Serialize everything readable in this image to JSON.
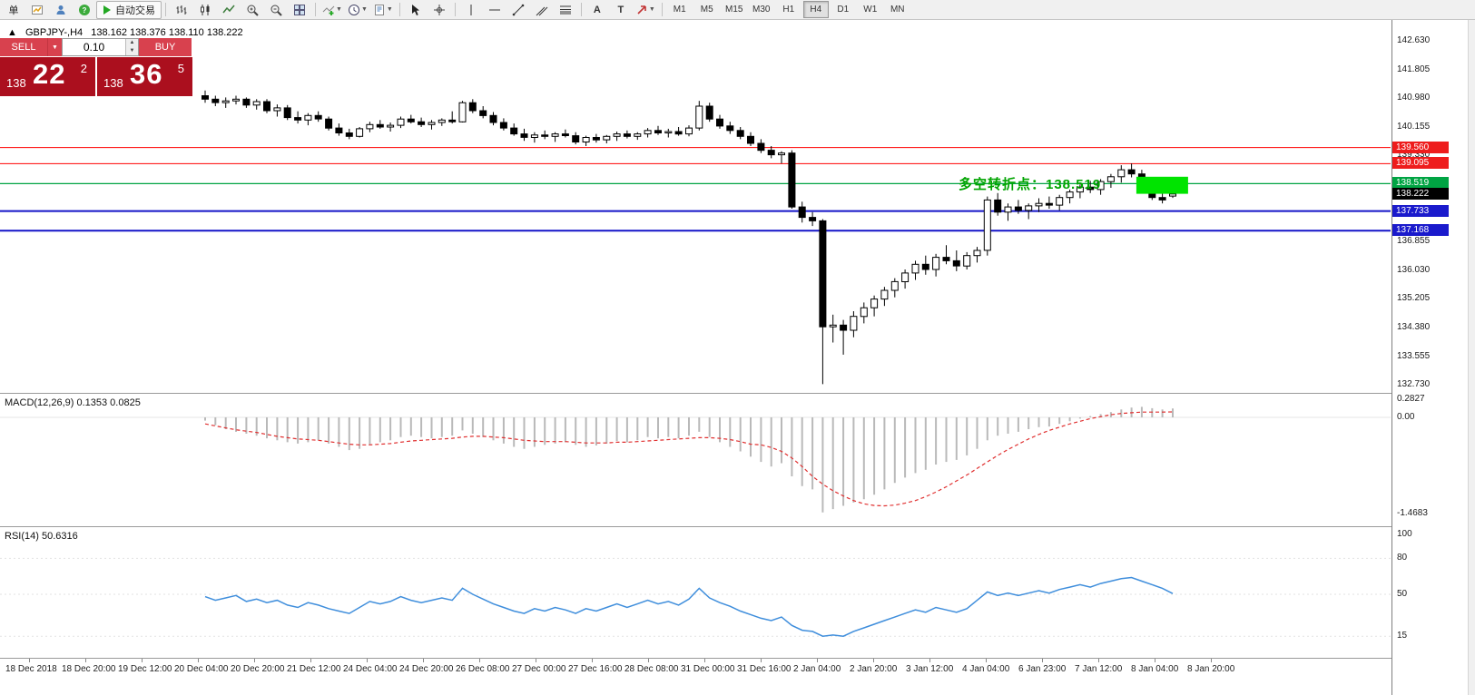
{
  "toolbar": {
    "new_order_label": "单",
    "autotrade_label": "自动交易",
    "text_tool": "A",
    "label_tool": "T",
    "timeframes": [
      "M1",
      "M5",
      "M15",
      "M30",
      "H1",
      "H4",
      "D1",
      "W1",
      "MN"
    ],
    "active_timeframe": "H4",
    "icons": [
      "new-order-icon",
      "new-chart-icon",
      "profiles-icon",
      "help-icon",
      "autotrade-play-icon",
      "bar-chart-icon",
      "candlestick-icon",
      "line-chart-icon",
      "zoom-in-icon",
      "zoom-out-icon",
      "tile-windows-icon",
      "add-indicator-icon",
      "periods-clock-icon",
      "template-icon",
      "cursor-icon",
      "crosshair-icon",
      "vertical-line-icon",
      "horizontal-line-icon",
      "trendline-icon",
      "channel-icon",
      "fibonacci-icon",
      "text-icon",
      "text-label-icon",
      "arrows-icon"
    ]
  },
  "symbol_header": {
    "collapse_arrow": "▲",
    "title": "GBPJPY-,H4",
    "ohlc": "138.162 138.376 138.110 138.222"
  },
  "trade_panel": {
    "sell_label": "SELL",
    "buy_label": "BUY",
    "lot_value": "0.10",
    "sell_display": {
      "prefix": "138",
      "big": "22",
      "sup": "2"
    },
    "buy_display": {
      "prefix": "138",
      "big": "36",
      "sup": "5"
    }
  },
  "main_chart": {
    "hlines": [
      {
        "price": 139.56,
        "color": "#ff0000",
        "width": 1
      },
      {
        "price": 139.095,
        "color": "#ff0000",
        "width": 1
      },
      {
        "price": 138.519,
        "color": "#00a443",
        "width": 1.3
      },
      {
        "price": 137.733,
        "color": "#1414c8",
        "width": 2
      },
      {
        "price": 137.168,
        "color": "#1414c8",
        "width": 2
      }
    ],
    "green_box": {
      "from_candle": 92,
      "to_candle": 95,
      "price_top": 138.72,
      "price_bottom": 138.23,
      "color": "#00e400"
    },
    "annotation": {
      "text": "多空转折点：138.519",
      "color": "#00a400"
    },
    "axis_labels": [
      {
        "text": "142.630",
        "price": 142.63
      },
      {
        "text": "141.805",
        "price": 141.805
      },
      {
        "text": "140.980",
        "price": 140.98
      },
      {
        "text": "140.155",
        "price": 140.155
      },
      {
        "text": "139.330",
        "price": 139.33
      },
      {
        "text": "136.855",
        "price": 136.855
      },
      {
        "text": "136.030",
        "price": 136.03
      },
      {
        "text": "135.205",
        "price": 135.205
      },
      {
        "text": "134.380",
        "price": 134.38
      },
      {
        "text": "133.555",
        "price": 133.555
      },
      {
        "text": "132.730",
        "price": 132.73
      }
    ],
    "price_badges": [
      {
        "text": "139.560",
        "price": 139.56,
        "bg": "#ee1c1c"
      },
      {
        "text": "139.095",
        "price": 139.095,
        "bg": "#ee1c1c"
      },
      {
        "text": "138.519",
        "price": 138.519,
        "bg": "#00a443"
      },
      {
        "text": "138.222",
        "price": 138.222,
        "bg": "#000000"
      },
      {
        "text": "137.733",
        "price": 137.733,
        "bg": "#1a1acc"
      },
      {
        "text": "137.168",
        "price": 137.168,
        "bg": "#1a1acc"
      }
    ]
  },
  "macd": {
    "label": "MACD(12,26,9) 0.1353 0.0825",
    "axis": [
      {
        "text": "0.2827",
        "value": 0.2827
      },
      {
        "text": "0.00",
        "value": 0
      },
      {
        "text": "-1.4683",
        "value": -1.4683
      }
    ]
  },
  "rsi": {
    "label": "RSI(14) 50.6316",
    "axis": [
      {
        "text": "100",
        "value": 100
      },
      {
        "text": "80",
        "value": 80
      },
      {
        "text": "50",
        "value": 50
      },
      {
        "text": "15",
        "value": 15
      }
    ],
    "levels": [
      80,
      50,
      15
    ]
  },
  "time_axis": [
    "18 Dec 2018",
    "18 Dec 20:00",
    "19 Dec 12:00",
    "20 Dec 04:00",
    "20 Dec 20:00",
    "21 Dec 12:00",
    "24 Dec 04:00",
    "24 Dec 20:00",
    "26 Dec 08:00",
    "27 Dec 00:00",
    "27 Dec 16:00",
    "28 Dec 08:00",
    "31 Dec 00:00",
    "31 Dec 16:00",
    "2 Jan 04:00",
    "2 Jan 20:00",
    "3 Jan 12:00",
    "4 Jan 04:00",
    "6 Jan 23:00",
    "7 Jan 12:00",
    "8 Jan 04:00",
    "8 Jan 20:00"
  ],
  "chart_data": {
    "type": "candlestick",
    "symbol": "GBPJPY-",
    "timeframe": "H4",
    "price_range": [
      132.5,
      143.23
    ],
    "candles": [
      [
        141.05,
        141.2,
        140.85,
        140.95
      ],
      [
        140.95,
        141.05,
        140.75,
        140.85
      ],
      [
        140.85,
        141.0,
        140.7,
        140.9
      ],
      [
        140.9,
        141.05,
        140.8,
        140.95
      ],
      [
        140.95,
        141.0,
        140.7,
        140.78
      ],
      [
        140.78,
        140.95,
        140.65,
        140.88
      ],
      [
        140.88,
        140.95,
        140.55,
        140.62
      ],
      [
        140.62,
        140.8,
        140.45,
        140.7
      ],
      [
        140.7,
        140.78,
        140.35,
        140.42
      ],
      [
        140.42,
        140.6,
        140.25,
        140.35
      ],
      [
        140.35,
        140.55,
        140.2,
        140.48
      ],
      [
        140.48,
        140.6,
        140.3,
        140.38
      ],
      [
        140.38,
        140.45,
        140.05,
        140.12
      ],
      [
        140.12,
        140.25,
        139.9,
        139.98
      ],
      [
        139.98,
        140.1,
        139.8,
        139.88
      ],
      [
        139.88,
        140.15,
        139.85,
        140.1
      ],
      [
        140.1,
        140.3,
        140.0,
        140.22
      ],
      [
        140.22,
        140.35,
        140.1,
        140.15
      ],
      [
        140.15,
        140.28,
        140.02,
        140.2
      ],
      [
        140.2,
        140.45,
        140.12,
        140.38
      ],
      [
        140.38,
        140.5,
        140.25,
        140.3
      ],
      [
        140.3,
        140.42,
        140.15,
        140.22
      ],
      [
        140.22,
        140.35,
        140.08,
        140.28
      ],
      [
        140.28,
        140.4,
        140.18,
        140.35
      ],
      [
        140.35,
        140.6,
        140.25,
        140.3
      ],
      [
        140.3,
        140.9,
        140.28,
        140.85
      ],
      [
        140.85,
        140.95,
        140.55,
        140.62
      ],
      [
        140.62,
        140.75,
        140.4,
        140.48
      ],
      [
        140.48,
        140.58,
        140.2,
        140.28
      ],
      [
        140.28,
        140.4,
        140.05,
        140.12
      ],
      [
        140.12,
        140.25,
        139.9,
        139.95
      ],
      [
        139.95,
        140.1,
        139.75,
        139.85
      ],
      [
        139.85,
        140.0,
        139.7,
        139.92
      ],
      [
        139.92,
        140.05,
        139.8,
        139.88
      ],
      [
        139.88,
        140.0,
        139.72,
        139.95
      ],
      [
        139.95,
        140.08,
        139.85,
        139.9
      ],
      [
        139.9,
        140.0,
        139.65,
        139.72
      ],
      [
        139.72,
        139.9,
        139.6,
        139.85
      ],
      [
        139.85,
        139.95,
        139.7,
        139.78
      ],
      [
        139.78,
        139.92,
        139.68,
        139.88
      ],
      [
        139.88,
        140.02,
        139.75,
        139.95
      ],
      [
        139.95,
        140.05,
        139.82,
        139.88
      ],
      [
        139.88,
        140.0,
        139.78,
        139.95
      ],
      [
        139.95,
        140.12,
        139.85,
        140.05
      ],
      [
        140.05,
        140.18,
        139.92,
        139.98
      ],
      [
        139.98,
        140.1,
        139.85,
        140.02
      ],
      [
        140.02,
        140.15,
        139.9,
        139.95
      ],
      [
        139.95,
        140.2,
        139.88,
        140.12
      ],
      [
        140.12,
        140.9,
        140.05,
        140.75
      ],
      [
        140.75,
        140.85,
        140.3,
        140.38
      ],
      [
        140.38,
        140.5,
        140.1,
        140.18
      ],
      [
        140.18,
        140.3,
        139.95,
        140.05
      ],
      [
        140.05,
        140.15,
        139.8,
        139.88
      ],
      [
        139.88,
        140.0,
        139.6,
        139.68
      ],
      [
        139.68,
        139.8,
        139.4,
        139.48
      ],
      [
        139.48,
        139.6,
        139.25,
        139.35
      ],
      [
        139.35,
        139.45,
        139.1,
        139.4
      ],
      [
        139.4,
        139.48,
        137.8,
        137.85
      ],
      [
        137.85,
        138.0,
        137.4,
        137.55
      ],
      [
        137.55,
        137.7,
        137.3,
        137.45
      ],
      [
        137.45,
        137.5,
        132.75,
        134.4
      ],
      [
        134.4,
        134.75,
        133.95,
        134.45
      ],
      [
        134.45,
        134.6,
        133.6,
        134.3
      ],
      [
        134.3,
        134.85,
        134.1,
        134.7
      ],
      [
        134.7,
        135.1,
        134.5,
        134.95
      ],
      [
        134.95,
        135.3,
        134.7,
        135.2
      ],
      [
        135.2,
        135.55,
        135.0,
        135.45
      ],
      [
        135.45,
        135.8,
        135.25,
        135.7
      ],
      [
        135.7,
        136.05,
        135.5,
        135.95
      ],
      [
        135.95,
        136.3,
        135.75,
        136.2
      ],
      [
        136.2,
        136.45,
        135.9,
        136.05
      ],
      [
        136.05,
        136.5,
        135.85,
        136.4
      ],
      [
        136.4,
        136.75,
        136.2,
        136.3
      ],
      [
        136.3,
        136.6,
        136.0,
        136.15
      ],
      [
        136.15,
        136.55,
        136.05,
        136.45
      ],
      [
        136.45,
        136.7,
        136.25,
        136.6
      ],
      [
        136.6,
        138.15,
        136.45,
        138.05
      ],
      [
        138.05,
        138.25,
        137.6,
        137.7
      ],
      [
        137.7,
        137.95,
        137.45,
        137.85
      ],
      [
        137.85,
        138.05,
        137.65,
        137.75
      ],
      [
        137.75,
        137.95,
        137.5,
        137.88
      ],
      [
        137.88,
        138.1,
        137.7,
        137.95
      ],
      [
        137.95,
        138.15,
        137.8,
        137.9
      ],
      [
        137.9,
        138.2,
        137.75,
        138.12
      ],
      [
        138.12,
        138.35,
        137.95,
        138.28
      ],
      [
        138.28,
        138.5,
        138.1,
        138.42
      ],
      [
        138.42,
        138.6,
        138.25,
        138.35
      ],
      [
        138.35,
        138.65,
        138.2,
        138.58
      ],
      [
        138.58,
        138.8,
        138.4,
        138.72
      ],
      [
        138.72,
        139.05,
        138.55,
        138.92
      ],
      [
        138.92,
        139.1,
        138.7,
        138.8
      ],
      [
        138.8,
        138.92,
        138.38,
        138.45
      ],
      [
        138.45,
        138.52,
        138.05,
        138.12
      ],
      [
        138.12,
        138.3,
        137.95,
        138.05
      ],
      [
        138.162,
        138.376,
        138.11,
        138.222
      ]
    ],
    "indicators": {
      "macd_histogram": [
        -0.05,
        -0.12,
        -0.18,
        -0.22,
        -0.25,
        -0.28,
        -0.32,
        -0.35,
        -0.38,
        -0.4,
        -0.38,
        -0.35,
        -0.4,
        -0.45,
        -0.5,
        -0.48,
        -0.42,
        -0.38,
        -0.35,
        -0.3,
        -0.28,
        -0.3,
        -0.32,
        -0.3,
        -0.28,
        -0.2,
        -0.25,
        -0.3,
        -0.35,
        -0.4,
        -0.45,
        -0.48,
        -0.45,
        -0.42,
        -0.4,
        -0.38,
        -0.42,
        -0.45,
        -0.43,
        -0.4,
        -0.36,
        -0.38,
        -0.35,
        -0.3,
        -0.32,
        -0.3,
        -0.32,
        -0.28,
        -0.22,
        -0.3,
        -0.38,
        -0.45,
        -0.52,
        -0.6,
        -0.68,
        -0.75,
        -0.7,
        -0.9,
        -1.05,
        -1.1,
        -1.45,
        -1.4,
        -1.35,
        -1.3,
        -1.25,
        -1.18,
        -1.1,
        -1.0,
        -0.92,
        -0.85,
        -0.8,
        -0.72,
        -0.68,
        -0.65,
        -0.58,
        -0.48,
        -0.35,
        -0.28,
        -0.25,
        -0.22,
        -0.18,
        -0.15,
        -0.14,
        -0.1,
        -0.06,
        -0.02,
        0.02,
        0.05,
        0.08,
        0.12,
        0.15,
        0.16,
        0.14,
        0.12,
        0.1353
      ],
      "macd_signal": [
        -0.1,
        -0.13,
        -0.16,
        -0.19,
        -0.21,
        -0.23,
        -0.26,
        -0.29,
        -0.31,
        -0.33,
        -0.34,
        -0.35,
        -0.37,
        -0.39,
        -0.41,
        -0.42,
        -0.42,
        -0.41,
        -0.4,
        -0.38,
        -0.36,
        -0.35,
        -0.34,
        -0.33,
        -0.32,
        -0.3,
        -0.29,
        -0.29,
        -0.3,
        -0.31,
        -0.33,
        -0.35,
        -0.36,
        -0.37,
        -0.37,
        -0.37,
        -0.38,
        -0.39,
        -0.39,
        -0.39,
        -0.38,
        -0.38,
        -0.37,
        -0.36,
        -0.35,
        -0.34,
        -0.33,
        -0.32,
        -0.31,
        -0.31,
        -0.32,
        -0.34,
        -0.37,
        -0.41,
        -0.42,
        -0.46,
        -0.52,
        -0.62,
        -0.75,
        -0.9,
        -1.02,
        -1.12,
        -1.2,
        -1.27,
        -1.32,
        -1.345,
        -1.35,
        -1.34,
        -1.31,
        -1.27,
        -1.21,
        -1.14,
        -1.06,
        -0.97,
        -0.88,
        -0.78,
        -0.68,
        -0.58,
        -0.49,
        -0.41,
        -0.33,
        -0.26,
        -0.2,
        -0.15,
        -0.1,
        -0.06,
        -0.02,
        0.01,
        0.04,
        0.06,
        0.07,
        0.08,
        0.08,
        0.08,
        0.0825
      ],
      "rsi": [
        48,
        45,
        47,
        49,
        44,
        46,
        43,
        45,
        41,
        39,
        43,
        41,
        38,
        36,
        34,
        39,
        44,
        42,
        44,
        48,
        45,
        43,
        45,
        47,
        45,
        55,
        50,
        46,
        42,
        39,
        36,
        34,
        38,
        36,
        39,
        37,
        34,
        38,
        36,
        39,
        42,
        39,
        42,
        45,
        42,
        44,
        41,
        46,
        55,
        47,
        43,
        40,
        36,
        33,
        30,
        28,
        31,
        24,
        20,
        19,
        15,
        16,
        15,
        19,
        22,
        25,
        28,
        31,
        34,
        37,
        35,
        39,
        37,
        35,
        38,
        45,
        52,
        49,
        51,
        49,
        51,
        53,
        51,
        54,
        56,
        58,
        56,
        59,
        61,
        63,
        64,
        61,
        58,
        55,
        50.63
      ]
    }
  }
}
